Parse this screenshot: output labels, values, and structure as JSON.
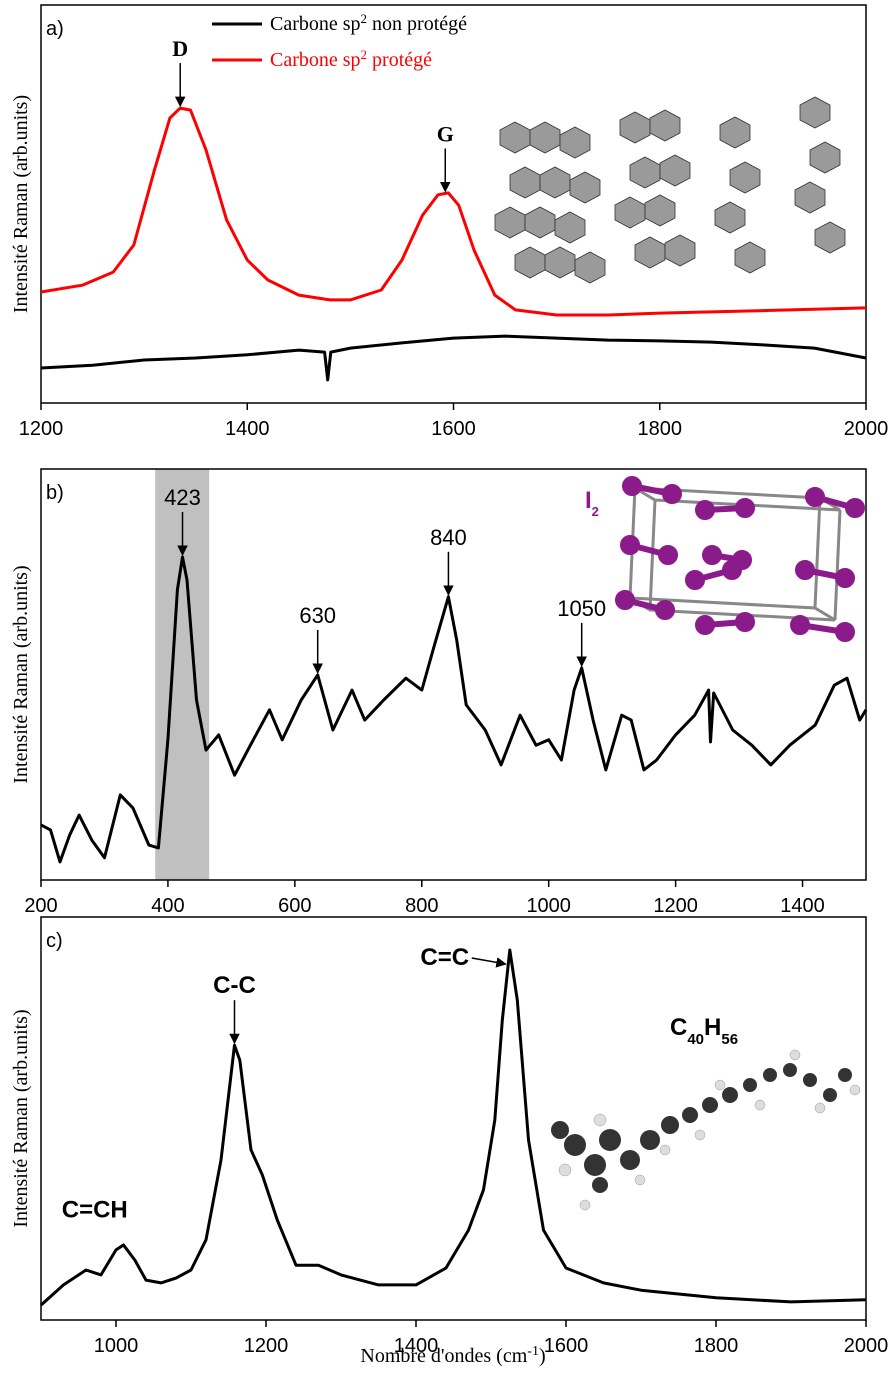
{
  "chart_data": [
    {
      "type": "line",
      "panel_label": "a)",
      "ylabel": "Intensité Raman (arb.units)",
      "xlim": [
        1200,
        2000
      ],
      "xticks": [
        1200,
        1400,
        1600,
        1800,
        2000
      ],
      "ylim": [
        0,
        100
      ],
      "legend": "top",
      "series": [
        {
          "name": [
            "Carbone sp",
            "2",
            " non protégé"
          ],
          "color": "#000000",
          "x": [
            1200,
            1250,
            1300,
            1350,
            1400,
            1450,
            1475,
            1478,
            1481,
            1500,
            1550,
            1600,
            1650,
            1700,
            1750,
            1800,
            1850,
            1900,
            1950,
            2000
          ],
          "values": [
            8.8,
            9.5,
            10.8,
            11.3,
            12.1,
            13.3,
            12.8,
            5.8,
            12.8,
            13.8,
            15.1,
            16.3,
            16.8,
            16.3,
            15.8,
            15.6,
            15.3,
            14.6,
            13.8,
            11.3
          ]
        },
        {
          "name": [
            "Carbone sp",
            "2",
            "  protégé"
          ],
          "color": "#ff0000",
          "x": [
            1200,
            1240,
            1270,
            1290,
            1310,
            1325,
            1335,
            1345,
            1360,
            1380,
            1400,
            1420,
            1450,
            1480,
            1500,
            1530,
            1550,
            1570,
            1585,
            1595,
            1605,
            1620,
            1640,
            1660,
            1700,
            1750,
            1800,
            1850,
            2000
          ],
          "values": [
            27.9,
            29.6,
            32.9,
            39.7,
            58.5,
            71.6,
            74.1,
            73.6,
            63.6,
            46.0,
            35.9,
            30.9,
            27.1,
            25.9,
            25.9,
            28.4,
            35.9,
            47.2,
            52.3,
            52.8,
            49.7,
            38.4,
            27.1,
            23.4,
            22.1,
            22.1,
            22.6,
            22.9,
            23.9
          ]
        }
      ],
      "annotations": [
        {
          "label": "D",
          "x": 1335
        },
        {
          "label": "G",
          "x": 1592
        }
      ]
    },
    {
      "type": "line",
      "panel_label": "b)",
      "ylabel": "Intensité Raman (arb.units)",
      "xlim": [
        200,
        1500
      ],
      "xticks": [
        200,
        400,
        600,
        800,
        1000,
        1200,
        1400
      ],
      "ylim": [
        0,
        100
      ],
      "highlight_range": [
        380,
        465
      ],
      "inset_label": [
        "I",
        "2"
      ],
      "series": [
        {
          "color": "#000000",
          "x": [
            200,
            215,
            230,
            245,
            260,
            280,
            300,
            325,
            345,
            370,
            385,
            400,
            415,
            423,
            430,
            445,
            460,
            480,
            505,
            530,
            560,
            580,
            610,
            636,
            660,
            690,
            710,
            740,
            775,
            800,
            820,
            842,
            855,
            870,
            900,
            925,
            955,
            980,
            1000,
            1020,
            1040,
            1052,
            1070,
            1090,
            1115,
            1130,
            1150,
            1170,
            1200,
            1230,
            1252,
            1255,
            1260,
            1290,
            1320,
            1350,
            1380,
            1420,
            1450,
            1470,
            1490,
            1500
          ],
          "values": [
            13.4,
            12.2,
            4.4,
            10.9,
            15.8,
            9.7,
            5.4,
            20.7,
            17.5,
            8.5,
            7.8,
            34.1,
            70.6,
            78.6,
            73.0,
            43.8,
            31.6,
            35.3,
            25.5,
            32.8,
            41.4,
            34.1,
            43.8,
            49.9,
            36.5,
            46.2,
            38.9,
            43.8,
            49.1,
            46.2,
            57.2,
            68.9,
            58.4,
            42.6,
            36.5,
            28.0,
            40.1,
            32.8,
            34.1,
            29.2,
            46.2,
            51.6,
            38.9,
            26.8,
            40.1,
            38.9,
            26.8,
            29.2,
            35.3,
            40.1,
            46.2,
            33.6,
            45.5,
            36.5,
            32.8,
            28.0,
            32.8,
            37.7,
            47.4,
            49.1,
            38.9,
            41.4
          ]
        }
      ],
      "annotations": [
        {
          "label": "423",
          "x": 423
        },
        {
          "label": "630",
          "x": 636
        },
        {
          "label": "840",
          "x": 842
        },
        {
          "label": "1050",
          "x": 1052
        }
      ]
    },
    {
      "type": "line",
      "panel_label": "c)",
      "ylabel": "Intensité Raman (arb.units)",
      "xlabel": [
        "Nombre d'ondes (cm",
        "-1",
        ")"
      ],
      "xlim": [
        900,
        2000
      ],
      "xticks": [
        1000,
        1200,
        1400,
        1600,
        1800,
        2000
      ],
      "ylim": [
        0,
        100
      ],
      "formula": [
        "C",
        "40",
        "H",
        "56"
      ],
      "series": [
        {
          "color": "#000000",
          "x": [
            900,
            930,
            960,
            980,
            1000,
            1010,
            1025,
            1040,
            1060,
            1080,
            1100,
            1120,
            1140,
            1158,
            1165,
            1180,
            1195,
            1215,
            1240,
            1270,
            1300,
            1350,
            1400,
            1440,
            1470,
            1490,
            1505,
            1515,
            1525,
            1535,
            1550,
            1570,
            1600,
            1650,
            1700,
            1800,
            1900,
            2000
          ],
          "values": [
            3.7,
            8.7,
            12.4,
            11.2,
            17.4,
            18.6,
            14.9,
            9.9,
            9.2,
            10.4,
            12.4,
            19.9,
            39.7,
            68.2,
            64.5,
            42.2,
            36.0,
            24.8,
            13.6,
            13.6,
            11.2,
            8.7,
            8.7,
            12.9,
            22.3,
            32.3,
            49.6,
            74.4,
            91.8,
            79.4,
            44.7,
            22.3,
            12.9,
            9.2,
            7.4,
            5.5,
            4.5,
            5.0
          ]
        }
      ],
      "annotations": [
        {
          "label": "C=CH",
          "x": 1005
        },
        {
          "label": "C-C",
          "x": 1158
        },
        {
          "label": "C=C",
          "x": 1525
        }
      ]
    }
  ]
}
